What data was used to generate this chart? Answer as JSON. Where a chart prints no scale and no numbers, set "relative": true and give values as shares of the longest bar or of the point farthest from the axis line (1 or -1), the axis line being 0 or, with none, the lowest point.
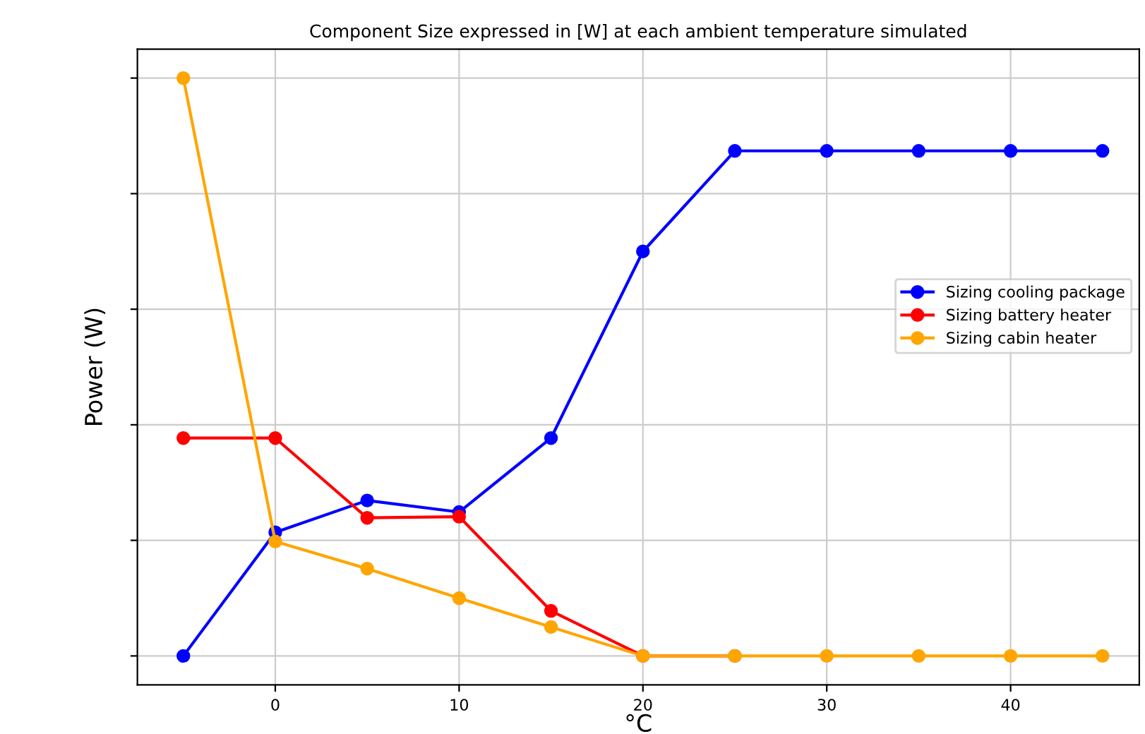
{
  "chart_data": {
    "type": "line",
    "title": "Component Size expressed in [W] at each ambient temperature simulated",
    "xlabel": "°C",
    "ylabel": "Power (W)",
    "relative": true,
    "x": [
      -5,
      0,
      5,
      10,
      15,
      20,
      25,
      30,
      35,
      40,
      45
    ],
    "xlim": [
      -7.5,
      47
    ],
    "xticks": [
      0,
      10,
      20,
      30,
      40
    ],
    "series": [
      {
        "name": "Sizing cooling package",
        "color": "#0000ff",
        "values": [
          0,
          0.214,
          0.269,
          0.249,
          0.377,
          0.7,
          0.874,
          0.874,
          0.874,
          0.874,
          0.874
        ]
      },
      {
        "name": "Sizing battery heater",
        "color": "#ff0000",
        "values": [
          0.377,
          0.377,
          0.239,
          0.241,
          0.078,
          0,
          0,
          null,
          null,
          null,
          null
        ]
      },
      {
        "name": "Sizing cabin heater",
        "color": "#ffa500",
        "values": [
          1,
          0.198,
          0.151,
          0.1,
          0.05,
          0,
          0,
          0,
          0,
          0,
          0
        ]
      }
    ],
    "grid": true,
    "legend": "right",
    "marker": "circle",
    "line_style": "solid"
  }
}
